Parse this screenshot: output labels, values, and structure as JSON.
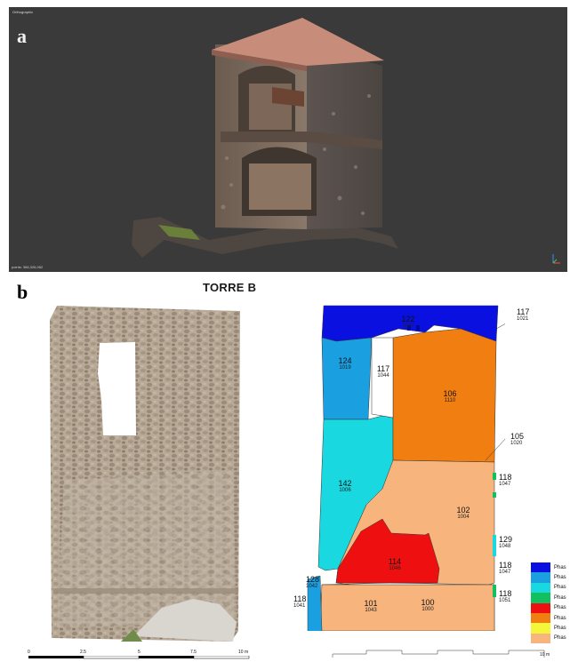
{
  "panel_a": {
    "letter": "a",
    "viewport_title": "Orthographic",
    "points_label": "points: 366,326,062"
  },
  "section_title": "TORRE B",
  "panel_b": {
    "letter": "b",
    "units": [
      {
        "id": "u122",
        "main": "122",
        "sub": "1022"
      },
      {
        "id": "u117a",
        "main": "117",
        "sub": "1021"
      },
      {
        "id": "u124",
        "main": "124",
        "sub": "1019"
      },
      {
        "id": "u117b",
        "main": "117",
        "sub": "1044"
      },
      {
        "id": "u106",
        "main": "106",
        "sub": "1110"
      },
      {
        "id": "u105",
        "main": "105",
        "sub": "1020"
      },
      {
        "id": "u118a",
        "main": "118",
        "sub": "1047"
      },
      {
        "id": "u142",
        "main": "142",
        "sub": "1006"
      },
      {
        "id": "u102",
        "main": "102",
        "sub": "1004"
      },
      {
        "id": "u129",
        "main": "129",
        "sub": "1048"
      },
      {
        "id": "u114",
        "main": "114",
        "sub": "1046"
      },
      {
        "id": "u118b",
        "main": "118",
        "sub": "1047"
      },
      {
        "id": "u128",
        "main": "128",
        "sub": "1042"
      },
      {
        "id": "u118c",
        "main": "118",
        "sub": "1041"
      },
      {
        "id": "u101",
        "main": "101",
        "sub": "1043"
      },
      {
        "id": "u100",
        "main": "100",
        "sub": "1000"
      },
      {
        "id": "u118d",
        "main": "118",
        "sub": "1051"
      }
    ],
    "legend": [
      {
        "label": "Phas",
        "color": "#0a10e0"
      },
      {
        "label": "Phas",
        "color": "#1a9fe0"
      },
      {
        "label": "Phas",
        "color": "#19d8e0"
      },
      {
        "label": "Phas",
        "color": "#12c060"
      },
      {
        "label": "Phas",
        "color": "#ee1010"
      },
      {
        "label": "Phas",
        "color": "#f07e10"
      },
      {
        "label": "Phas",
        "color": "#f5f53a"
      },
      {
        "label": "Phas",
        "color": "#f7b47c"
      }
    ],
    "scale_photo": [
      "0",
      "2.5",
      "5",
      "7.5",
      "10 m"
    ],
    "scale_drawing": "10 m"
  }
}
